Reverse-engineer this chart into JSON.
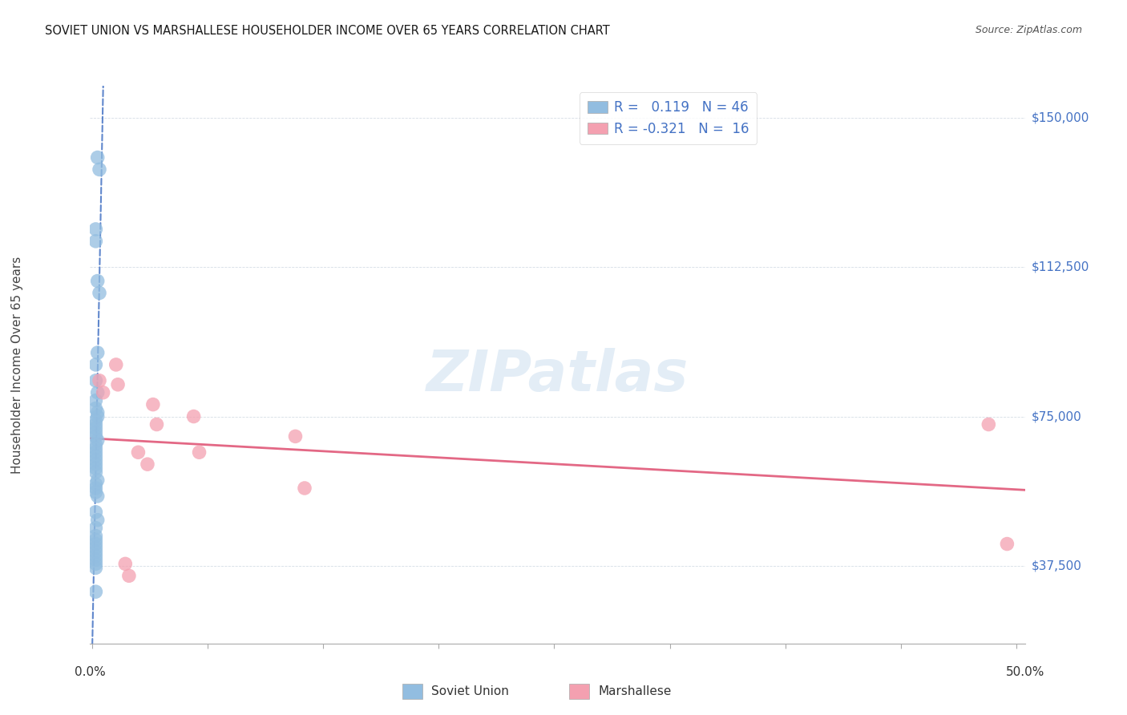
{
  "title": "SOVIET UNION VS MARSHALLESE HOUSEHOLDER INCOME OVER 65 YEARS CORRELATION CHART",
  "source": "Source: ZipAtlas.com",
  "ylabel": "Householder Income Over 65 years",
  "y_ticks": [
    37500,
    75000,
    112500,
    150000
  ],
  "y_tick_labels": [
    "$37,500",
    "$75,000",
    "$112,500",
    "$150,000"
  ],
  "y_min": 18000,
  "y_max": 158000,
  "x_min": -0.001,
  "x_max": 0.505,
  "watermark_text": "ZIPatlas",
  "legend_blue_r": "0.119",
  "legend_blue_n": "46",
  "legend_pink_r": "-0.321",
  "legend_pink_n": "16",
  "soviet_x": [
    0.003,
    0.004,
    0.002,
    0.002,
    0.003,
    0.004,
    0.003,
    0.002,
    0.002,
    0.003,
    0.002,
    0.002,
    0.003,
    0.003,
    0.002,
    0.002,
    0.002,
    0.002,
    0.002,
    0.003,
    0.002,
    0.002,
    0.002,
    0.002,
    0.002,
    0.002,
    0.002,
    0.002,
    0.003,
    0.002,
    0.002,
    0.002,
    0.003,
    0.002,
    0.003,
    0.002,
    0.002,
    0.002,
    0.002,
    0.002,
    0.002,
    0.002,
    0.002,
    0.002,
    0.002,
    0.002
  ],
  "soviet_y": [
    140000,
    137000,
    122000,
    119000,
    109000,
    106000,
    91000,
    88000,
    84000,
    81000,
    79000,
    77000,
    76000,
    75000,
    74000,
    73000,
    72000,
    71000,
    70000,
    69000,
    68000,
    67000,
    66000,
    65000,
    64000,
    63000,
    62000,
    61000,
    59000,
    58000,
    57000,
    56000,
    55000,
    51000,
    49000,
    47000,
    45000,
    44000,
    43000,
    42000,
    41000,
    40000,
    39000,
    38000,
    37000,
    31000
  ],
  "marshallese_x": [
    0.004,
    0.006,
    0.013,
    0.014,
    0.018,
    0.02,
    0.025,
    0.03,
    0.033,
    0.035,
    0.055,
    0.058,
    0.11,
    0.115,
    0.485,
    0.495
  ],
  "marshallese_y": [
    84000,
    81000,
    88000,
    83000,
    38000,
    35000,
    66000,
    63000,
    78000,
    73000,
    75000,
    66000,
    70000,
    57000,
    73000,
    43000
  ],
  "blue_scatter_color": "#92bde0",
  "pink_scatter_color": "#f4a0b0",
  "blue_line_color": "#4472C4",
  "pink_line_color": "#e05878",
  "grid_color": "#d5dde5",
  "bg_color": "#ffffff",
  "right_label_color": "#4472C4",
  "title_color": "#1a1a1a",
  "source_color": "#555555",
  "ylabel_color": "#444444",
  "bottom_label_color": "#333333"
}
